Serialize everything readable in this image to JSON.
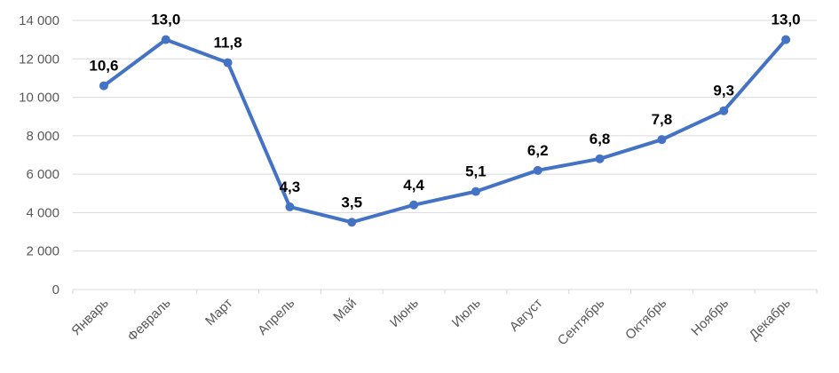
{
  "chart_data": {
    "type": "line",
    "categories": [
      "Январь",
      "Февраль",
      "Март",
      "Апрель",
      "Май",
      "Июнь",
      "Июль",
      "Август",
      "Сентябрь",
      "Октябрь",
      "Ноябрь",
      "Декабрь"
    ],
    "values": [
      10600,
      13000,
      11800,
      4300,
      3500,
      4400,
      5100,
      6200,
      6800,
      7800,
      9300,
      13000
    ],
    "data_labels": [
      "10,6",
      "13,0",
      "11,8",
      "4,3",
      "3,5",
      "4,4",
      "5,1",
      "6,2",
      "6,8",
      "7,8",
      "9,3",
      "13,0"
    ],
    "yticks": [
      "0",
      "2 000",
      "4 000",
      "6 000",
      "8 000",
      "10 000",
      "12 000",
      "14 000"
    ],
    "ylim": [
      0,
      14000
    ],
    "grid": true,
    "legend": "none",
    "line_color": "#4472C4",
    "grid_color": "#D9D9D9"
  }
}
